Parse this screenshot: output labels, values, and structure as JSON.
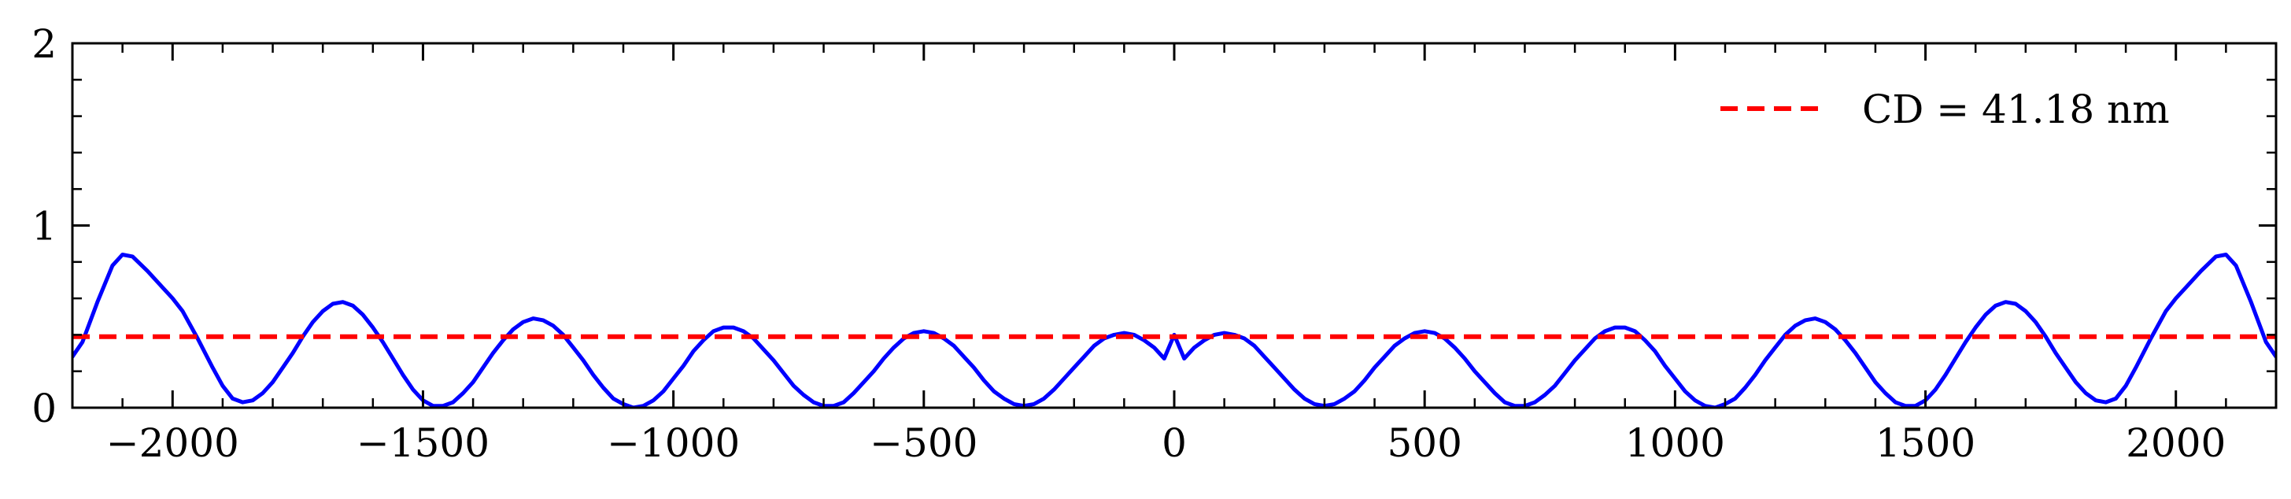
{
  "chart_data": {
    "type": "line",
    "title": "",
    "xlabel": "",
    "ylabel": "",
    "xlim": [
      -2200,
      2200
    ],
    "ylim": [
      0,
      2
    ],
    "x_ticks": [
      -2000,
      -1500,
      -1000,
      -500,
      0,
      500,
      1000,
      1500,
      2000
    ],
    "x_tick_labels": [
      "−2000",
      "−1500",
      "−1000",
      "−500",
      "0",
      "500",
      "1000",
      "1500",
      "2000"
    ],
    "y_ticks": [
      0,
      1,
      2
    ],
    "y_tick_labels": [
      "0",
      "1",
      "2"
    ],
    "grid": false,
    "legend": {
      "position": "top-right",
      "entries": [
        "CD = 41.18 nm"
      ]
    },
    "series": [
      {
        "name": "",
        "color": "#0000ff",
        "style": "solid",
        "x": [
          -2200,
          -2180,
          -2150,
          -2120,
          -2100,
          -2080,
          -2050,
          -2020,
          -2000,
          -1980,
          -1950,
          -1920,
          -1900,
          -1880,
          -1860,
          -1840,
          -1820,
          -1800,
          -1780,
          -1760,
          -1740,
          -1720,
          -1700,
          -1680,
          -1660,
          -1640,
          -1620,
          -1600,
          -1580,
          -1560,
          -1540,
          -1520,
          -1500,
          -1480,
          -1460,
          -1440,
          -1420,
          -1400,
          -1380,
          -1360,
          -1340,
          -1320,
          -1300,
          -1280,
          -1260,
          -1240,
          -1220,
          -1200,
          -1180,
          -1160,
          -1140,
          -1120,
          -1100,
          -1080,
          -1060,
          -1040,
          -1020,
          -1000,
          -980,
          -960,
          -940,
          -920,
          -900,
          -880,
          -860,
          -840,
          -820,
          -800,
          -780,
          -760,
          -740,
          -720,
          -700,
          -680,
          -660,
          -640,
          -620,
          -600,
          -580,
          -560,
          -540,
          -520,
          -500,
          -480,
          -460,
          -440,
          -420,
          -400,
          -380,
          -360,
          -340,
          -320,
          -300,
          -280,
          -260,
          -240,
          -220,
          -200,
          -180,
          -160,
          -140,
          -120,
          -100,
          -80,
          -60,
          -40,
          -20,
          0,
          20,
          40,
          60,
          80,
          100,
          120,
          140,
          160,
          180,
          200,
          220,
          240,
          260,
          280,
          300,
          320,
          340,
          360,
          380,
          400,
          420,
          440,
          460,
          480,
          500,
          520,
          540,
          560,
          580,
          600,
          620,
          640,
          660,
          680,
          700,
          720,
          740,
          760,
          780,
          800,
          820,
          840,
          860,
          880,
          900,
          920,
          940,
          960,
          980,
          1000,
          1020,
          1040,
          1060,
          1080,
          1100,
          1120,
          1140,
          1160,
          1180,
          1200,
          1220,
          1240,
          1260,
          1280,
          1300,
          1320,
          1340,
          1360,
          1380,
          1400,
          1420,
          1440,
          1460,
          1480,
          1500,
          1520,
          1540,
          1560,
          1580,
          1600,
          1620,
          1640,
          1660,
          1680,
          1700,
          1720,
          1740,
          1760,
          1780,
          1800,
          1820,
          1840,
          1860,
          1880,
          1900,
          1920,
          1950,
          1980,
          2000,
          2020,
          2050,
          2080,
          2100,
          2120,
          2150,
          2180,
          2200
        ],
        "y": [
          0.28,
          0.36,
          0.58,
          0.78,
          0.84,
          0.83,
          0.75,
          0.66,
          0.6,
          0.53,
          0.38,
          0.22,
          0.12,
          0.05,
          0.03,
          0.04,
          0.08,
          0.14,
          0.22,
          0.3,
          0.39,
          0.47,
          0.53,
          0.57,
          0.58,
          0.56,
          0.51,
          0.44,
          0.36,
          0.27,
          0.18,
          0.1,
          0.04,
          0.01,
          0.01,
          0.03,
          0.08,
          0.14,
          0.22,
          0.3,
          0.37,
          0.43,
          0.47,
          0.49,
          0.48,
          0.45,
          0.4,
          0.33,
          0.26,
          0.18,
          0.11,
          0.05,
          0.02,
          0.0,
          0.01,
          0.04,
          0.09,
          0.16,
          0.23,
          0.31,
          0.37,
          0.42,
          0.44,
          0.44,
          0.42,
          0.38,
          0.32,
          0.26,
          0.19,
          0.12,
          0.07,
          0.03,
          0.01,
          0.01,
          0.03,
          0.08,
          0.14,
          0.2,
          0.27,
          0.33,
          0.38,
          0.41,
          0.42,
          0.41,
          0.38,
          0.34,
          0.28,
          0.22,
          0.15,
          0.09,
          0.05,
          0.02,
          0.01,
          0.02,
          0.05,
          0.1,
          0.16,
          0.22,
          0.28,
          0.34,
          0.38,
          0.4,
          0.41,
          0.4,
          0.37,
          0.33,
          0.27,
          0.4,
          0.27,
          0.33,
          0.37,
          0.4,
          0.41,
          0.4,
          0.38,
          0.34,
          0.28,
          0.22,
          0.16,
          0.1,
          0.05,
          0.02,
          0.01,
          0.02,
          0.05,
          0.09,
          0.15,
          0.22,
          0.28,
          0.34,
          0.38,
          0.41,
          0.42,
          0.41,
          0.38,
          0.33,
          0.27,
          0.2,
          0.14,
          0.08,
          0.03,
          0.01,
          0.01,
          0.03,
          0.07,
          0.12,
          0.19,
          0.26,
          0.32,
          0.38,
          0.42,
          0.44,
          0.44,
          0.42,
          0.37,
          0.31,
          0.23,
          0.16,
          0.09,
          0.04,
          0.01,
          0.0,
          0.02,
          0.05,
          0.11,
          0.18,
          0.26,
          0.33,
          0.4,
          0.45,
          0.48,
          0.49,
          0.47,
          0.43,
          0.37,
          0.3,
          0.22,
          0.14,
          0.08,
          0.03,
          0.01,
          0.01,
          0.04,
          0.1,
          0.18,
          0.27,
          0.36,
          0.44,
          0.51,
          0.56,
          0.58,
          0.57,
          0.53,
          0.47,
          0.39,
          0.3,
          0.22,
          0.14,
          0.08,
          0.04,
          0.03,
          0.05,
          0.12,
          0.22,
          0.38,
          0.53,
          0.6,
          0.66,
          0.75,
          0.83,
          0.84,
          0.78,
          0.58,
          0.36,
          0.28
        ]
      },
      {
        "name": "CD = 41.18 nm",
        "color": "#ff0000",
        "style": "dashed",
        "x": [
          -2200,
          2200
        ],
        "y": [
          0.39,
          0.39
        ]
      }
    ]
  }
}
